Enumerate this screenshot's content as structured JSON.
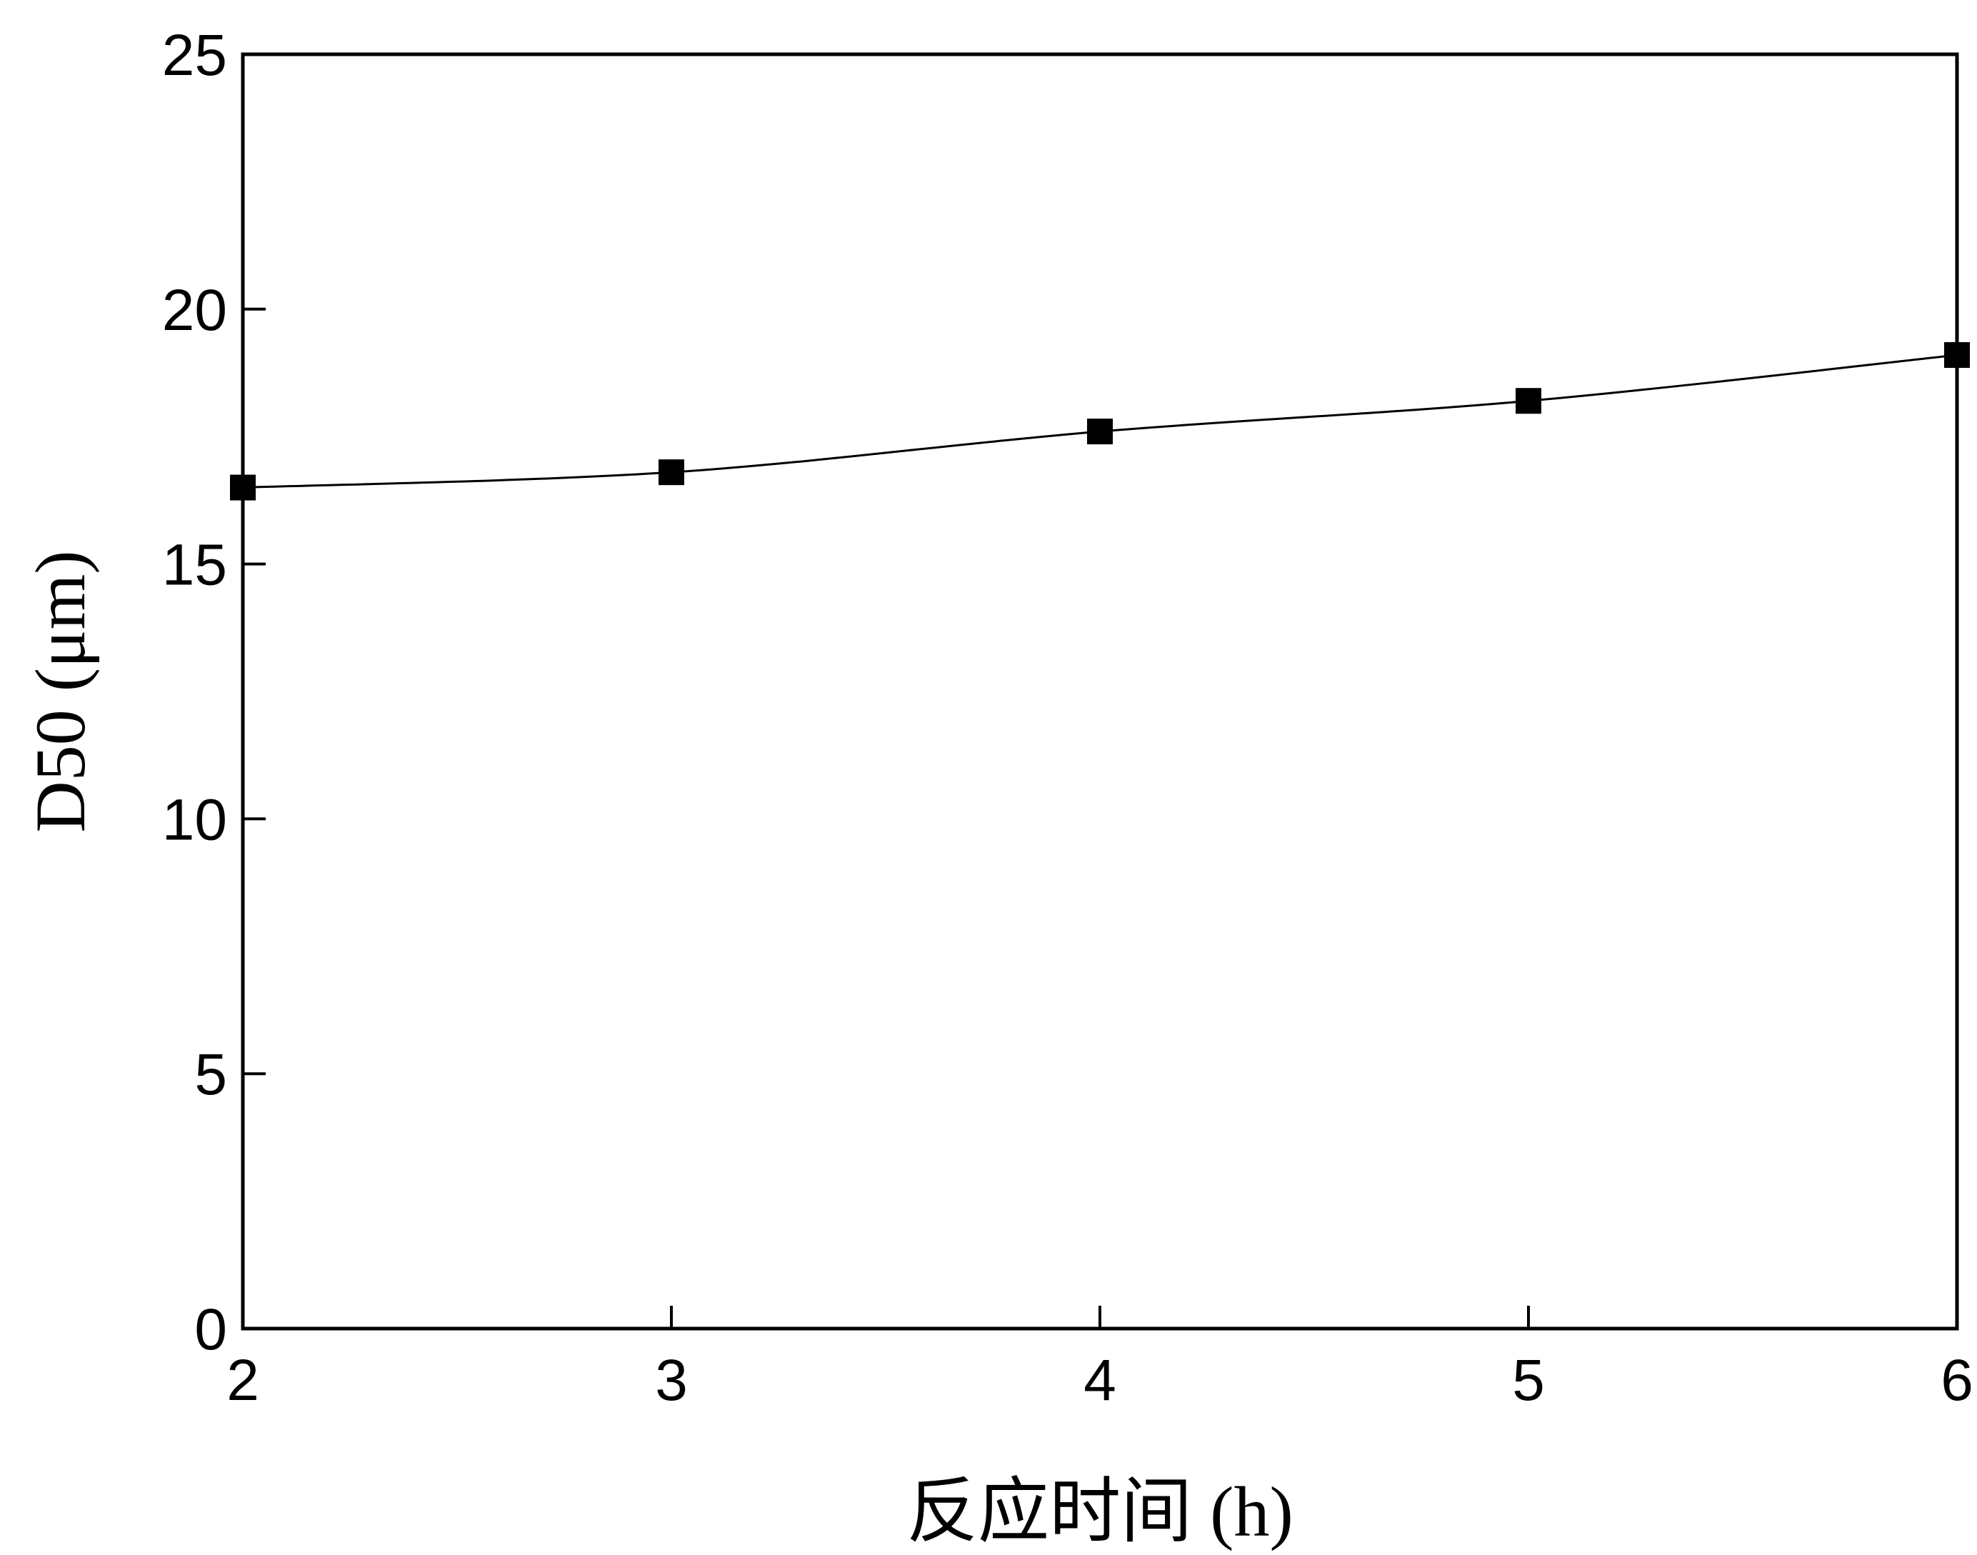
{
  "chart_data": {
    "type": "line",
    "x_label": "反应时间 (h)",
    "y_label": "D50 (μm)",
    "x": [
      2,
      3,
      4,
      5,
      6
    ],
    "series": [
      {
        "name": "D50",
        "color": "#000000",
        "marker": "square",
        "smooth": true,
        "values": [
          16.5,
          16.8,
          17.6,
          18.2,
          19.1
        ]
      }
    ],
    "xlim": [
      2,
      6
    ],
    "xticks": [
      2,
      3,
      4,
      5,
      6
    ],
    "ylim": [
      0,
      25
    ],
    "yticks": [
      0,
      5,
      10,
      15,
      20,
      25
    ],
    "grid": false
  }
}
